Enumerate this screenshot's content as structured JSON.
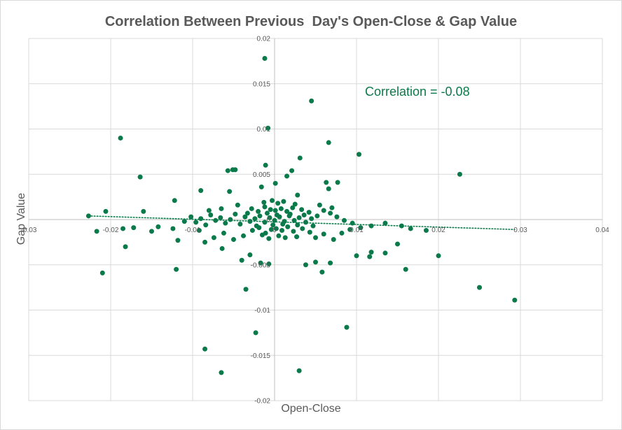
{
  "chart_data": {
    "type": "scatter",
    "title": "Correlation Between Previous  Day's Open-Close & Gap Value",
    "xlabel": "Open-Close",
    "ylabel": "Gap Value",
    "xlim": [
      -0.03,
      0.04
    ],
    "ylim": [
      -0.02,
      0.02
    ],
    "xticks": [
      -0.03,
      -0.02,
      -0.01,
      0,
      0.01,
      0.02,
      0.03,
      0.04
    ],
    "yticks": [
      -0.02,
      -0.015,
      -0.01,
      -0.005,
      0,
      0.005,
      0.01,
      0.015,
      0.02
    ],
    "xtick_labels": [
      "-0.03",
      "-0.02",
      "-0.01",
      "0",
      "0.01",
      "0.02",
      "0.03",
      "0.04"
    ],
    "ytick_labels": [
      "-0.02",
      "-0.015",
      "-0.01",
      "-0.005",
      "0",
      "0.005",
      "0.01",
      "0.015",
      "0.02"
    ],
    "grid": true,
    "marker_color": "#0b7a4b",
    "annotation": "Correlation = -0.08",
    "trendline": {
      "style": "dotted",
      "x": [
        -0.0227,
        0.0293
      ],
      "y": [
        0.0004,
        -0.0011
      ]
    },
    "points": [
      [
        -0.0012,
        0.0178
      ],
      [
        0.0045,
        0.0131
      ],
      [
        -0.0008,
        0.0101
      ],
      [
        0.0066,
        0.0085
      ],
      [
        0.0103,
        0.0072
      ],
      [
        0.0031,
        0.0068
      ],
      [
        -0.0011,
        0.006
      ],
      [
        -0.0188,
        0.009
      ],
      [
        -0.0164,
        0.0047
      ],
      [
        0.0226,
        0.005
      ],
      [
        -0.0057,
        0.0054
      ],
      [
        -0.0051,
        0.0055
      ],
      [
        -0.0048,
        0.0055
      ],
      [
        0.0021,
        0.0054
      ],
      [
        0.0015,
        0.0048
      ],
      [
        0.0063,
        0.0041
      ],
      [
        0.0077,
        0.0041
      ],
      [
        0.0066,
        0.0034
      ],
      [
        -0.0016,
        0.0036
      ],
      [
        0.0001,
        0.004
      ],
      [
        -0.009,
        0.0032
      ],
      [
        -0.0055,
        0.0031
      ],
      [
        0.0028,
        0.0027
      ],
      [
        -0.0122,
        0.0021
      ],
      [
        -0.016,
        0.0009
      ],
      [
        -0.0206,
        0.0009
      ],
      [
        -0.0227,
        0.0004
      ],
      [
        -0.0217,
        -0.0013
      ],
      [
        -0.0185,
        -0.001
      ],
      [
        -0.0172,
        -0.0009
      ],
      [
        -0.015,
        -0.0013
      ],
      [
        -0.0142,
        -0.0008
      ],
      [
        -0.0124,
        -0.001
      ],
      [
        -0.0182,
        -0.003
      ],
      [
        -0.021,
        -0.0059
      ],
      [
        -0.0118,
        -0.0023
      ],
      [
        -0.012,
        -0.0055
      ],
      [
        -0.0085,
        -0.0025
      ],
      [
        -0.0064,
        -0.0032
      ],
      [
        -0.004,
        -0.0045
      ],
      [
        -0.003,
        -0.0039
      ],
      [
        -0.0017,
        -0.0048
      ],
      [
        -0.0007,
        -0.0049
      ],
      [
        -0.0035,
        -0.0077
      ],
      [
        -0.0023,
        -0.0125
      ],
      [
        -0.0085,
        -0.0143
      ],
      [
        -0.0065,
        -0.0169
      ],
      [
        0.003,
        -0.0167
      ],
      [
        0.0088,
        -0.0119
      ],
      [
        0.005,
        -0.0047
      ],
      [
        0.0038,
        -0.005
      ],
      [
        0.0058,
        -0.0058
      ],
      [
        0.0068,
        -0.0048
      ],
      [
        0.01,
        -0.004
      ],
      [
        0.0116,
        -0.0041
      ],
      [
        0.0118,
        -0.0036
      ],
      [
        0.0135,
        -0.0037
      ],
      [
        0.015,
        -0.0027
      ],
      [
        0.016,
        -0.0055
      ],
      [
        0.02,
        -0.004
      ],
      [
        0.025,
        -0.0075
      ],
      [
        0.0293,
        -0.0089
      ],
      [
        0.0185,
        -0.0012
      ],
      [
        0.0166,
        -0.001
      ],
      [
        0.0155,
        -0.0007
      ],
      [
        0.0135,
        -0.0004
      ],
      [
        0.0118,
        -0.0007
      ],
      [
        0.0105,
        -0.0009
      ],
      [
        0.0095,
        -0.0004
      ],
      [
        0.0085,
        -0.0001
      ],
      [
        0.0076,
        0.0003
      ],
      [
        0.0068,
        0.0007
      ],
      [
        0.006,
        0.001
      ],
      [
        0.0052,
        0.0004
      ],
      [
        0.0045,
        0.0001
      ],
      [
        0.0038,
        -0.0003
      ],
      [
        0.003,
        0.0002
      ],
      [
        0.0024,
        -0.0001
      ],
      [
        0.0018,
        0.0004
      ],
      [
        0.0012,
        -0.0002
      ],
      [
        0.0006,
        0.0003
      ],
      [
        0.0,
        -0.0001
      ],
      [
        -0.0006,
        0.0002
      ],
      [
        -0.0012,
        -0.0003
      ],
      [
        -0.0018,
        0.0004
      ],
      [
        -0.0024,
        0.0001
      ],
      [
        -0.003,
        -0.0002
      ],
      [
        -0.0036,
        0.0003
      ],
      [
        -0.0042,
        -0.0005
      ],
      [
        -0.0048,
        0.0006
      ],
      [
        -0.0054,
        0.0
      ],
      [
        -0.006,
        -0.0004
      ],
      [
        -0.0066,
        0.0002
      ],
      [
        -0.0072,
        -0.0001
      ],
      [
        -0.0078,
        0.0005
      ],
      [
        -0.0084,
        -0.0006
      ],
      [
        -0.009,
        0.0001
      ],
      [
        -0.0096,
        -0.0003
      ],
      [
        -0.0102,
        0.0003
      ],
      [
        -0.011,
        -0.0002
      ],
      [
        0.0001,
        0.001
      ],
      [
        0.0008,
        0.0012
      ],
      [
        0.0015,
        0.0009
      ],
      [
        0.0022,
        0.0013
      ],
      [
        -0.0005,
        0.0011
      ],
      [
        -0.0012,
        0.0014
      ],
      [
        -0.002,
        0.0009
      ],
      [
        -0.0028,
        0.0012
      ],
      [
        0.0033,
        0.0011
      ],
      [
        0.0042,
        0.0008
      ],
      [
        0.0002,
        -0.001
      ],
      [
        0.0009,
        -0.0012
      ],
      [
        0.0016,
        -0.0008
      ],
      [
        0.0023,
        -0.0013
      ],
      [
        -0.0004,
        -0.0011
      ],
      [
        -0.0011,
        -0.0015
      ],
      [
        -0.0019,
        -0.0009
      ],
      [
        -0.0027,
        -0.0012
      ],
      [
        0.0034,
        -0.001
      ],
      [
        0.0043,
        -0.0014
      ],
      [
        0.0005,
        -0.0018
      ],
      [
        0.0013,
        -0.002
      ],
      [
        -0.0007,
        -0.0021
      ],
      [
        -0.0015,
        -0.0017
      ],
      [
        0.0027,
        -0.0019
      ],
      [
        0.0004,
        0.0018
      ],
      [
        0.0011,
        0.002
      ],
      [
        -0.0003,
        0.0021
      ],
      [
        -0.0013,
        0.0019
      ],
      [
        0.0025,
        0.0017
      ],
      [
        0.005,
        -0.002
      ],
      [
        0.006,
        -0.0016
      ],
      [
        0.0072,
        -0.0022
      ],
      [
        -0.0038,
        -0.0018
      ],
      [
        -0.005,
        -0.0022
      ],
      [
        -0.0062,
        -0.0015
      ],
      [
        -0.0074,
        -0.002
      ],
      [
        0.0055,
        0.0016
      ],
      [
        0.007,
        0.0013
      ],
      [
        -0.0045,
        0.0016
      ],
      [
        -0.0065,
        0.0012
      ],
      [
        -0.008,
        0.001
      ],
      [
        0.0082,
        -0.0015
      ],
      [
        0.0092,
        -0.0011
      ],
      [
        -0.0092,
        -0.0012
      ],
      [
        0.0003,
        0.0005
      ],
      [
        0.001,
        -0.0005
      ],
      [
        -0.0002,
        -0.0006
      ],
      [
        0.0019,
        0.0006
      ],
      [
        -0.0009,
        0.0007
      ],
      [
        0.0028,
        -0.0006
      ],
      [
        -0.0022,
        -0.0007
      ],
      [
        0.0036,
        0.0005
      ],
      [
        -0.0033,
        0.0007
      ],
      [
        0.0047,
        -0.0007
      ]
    ]
  }
}
